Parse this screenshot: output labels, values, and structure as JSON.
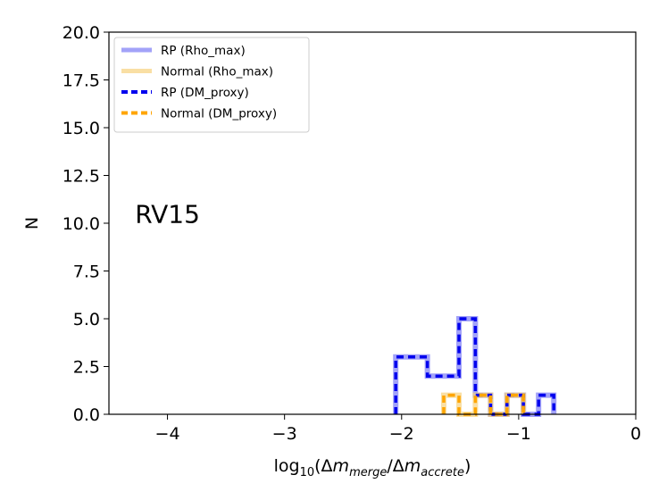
{
  "chart_data": {
    "type": "histogram-step",
    "xlabel_prefix": "log",
    "xlabel_sub": "10",
    "xlabel_open": "(Δ",
    "xlabel_m1": "m",
    "xlabel_merge": "merge",
    "xlabel_slash": "/Δ",
    "xlabel_m2": "m",
    "xlabel_accrete": "accrete",
    "xlabel_close": ")",
    "ylabel": "N",
    "xlim": [
      -4.5,
      0
    ],
    "ylim": [
      0,
      20
    ],
    "x_ticks": [
      -4,
      -3,
      -2,
      -1,
      0
    ],
    "x_tick_labels": [
      "−4",
      "−3",
      "−2",
      "−1",
      "0"
    ],
    "y_ticks": [
      0,
      2.5,
      5,
      7.5,
      10,
      12.5,
      15,
      17.5,
      20
    ],
    "y_tick_labels": [
      "0.0",
      "2.5",
      "5.0",
      "7.5",
      "10.0",
      "12.5",
      "15.0",
      "17.5",
      "20.0"
    ],
    "annotation": {
      "text": "RV15",
      "x": -4.0,
      "y": 10.5
    },
    "legend_position": "upper-left",
    "series": [
      {
        "name": "RP (Rho_max)",
        "color": "#7b7bf5",
        "style": "solid",
        "edges": [
          -2.05,
          -1.78,
          -1.51,
          -1.37,
          -1.24,
          -1.1,
          -0.96,
          -0.83,
          -0.7
        ],
        "counts": [
          3,
          2,
          5,
          1,
          0,
          1,
          0,
          1
        ]
      },
      {
        "name": "Normal (Rho_max)",
        "color": "#f7d27e",
        "style": "solid",
        "edges": [
          -1.64,
          -1.51,
          -1.37,
          -1.24,
          -1.1,
          -0.96
        ],
        "counts": [
          1,
          0,
          1,
          0,
          1
        ]
      },
      {
        "name": "RP (DM_proxy)",
        "color": "#0000ee",
        "style": "dashed",
        "edges": [
          -2.05,
          -1.78,
          -1.51,
          -1.37,
          -1.24,
          -1.1,
          -0.96,
          -0.83,
          -0.7
        ],
        "counts": [
          3,
          2,
          5,
          1,
          0,
          1,
          0,
          1
        ]
      },
      {
        "name": "Normal (DM_proxy)",
        "color": "#ffa500",
        "style": "dashed",
        "edges": [
          -1.64,
          -1.51,
          -1.37,
          -1.24,
          -1.1,
          -0.96
        ],
        "counts": [
          1,
          0,
          1,
          0,
          1
        ]
      }
    ]
  }
}
